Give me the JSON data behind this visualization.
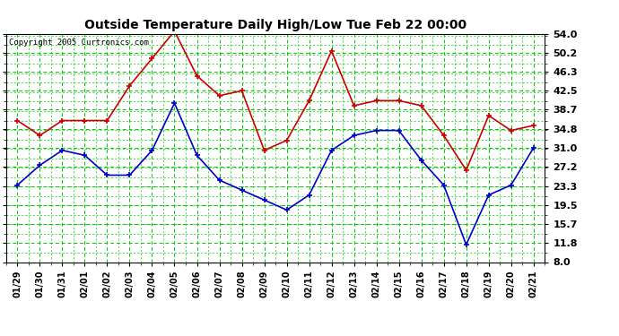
{
  "title": "Outside Temperature Daily High/Low Tue Feb 22 00:00",
  "copyright": "Copyright 2005 Curtronics.com",
  "x_labels": [
    "01/29",
    "01/30",
    "01/31",
    "02/01",
    "02/02",
    "02/03",
    "02/04",
    "02/05",
    "02/06",
    "02/07",
    "02/08",
    "02/09",
    "02/10",
    "02/11",
    "02/12",
    "02/13",
    "02/14",
    "02/15",
    "02/16",
    "02/17",
    "02/18",
    "02/19",
    "02/20",
    "02/21"
  ],
  "high_values": [
    36.5,
    33.5,
    36.5,
    36.5,
    36.5,
    43.5,
    49.0,
    54.5,
    45.5,
    41.5,
    42.5,
    30.5,
    32.5,
    40.5,
    50.5,
    39.5,
    40.5,
    40.5,
    39.5,
    33.5,
    26.5,
    37.5,
    34.5,
    35.5
  ],
  "low_values": [
    23.5,
    27.5,
    30.5,
    29.5,
    25.5,
    25.5,
    30.5,
    40.0,
    29.5,
    24.5,
    22.5,
    20.5,
    18.5,
    21.5,
    30.5,
    33.5,
    34.5,
    34.5,
    28.5,
    23.5,
    11.5,
    21.5,
    23.5,
    31.0
  ],
  "high_color": "#cc0000",
  "low_color": "#0000cc",
  "bg_color": "#ffffff",
  "plot_bg_color": "#ffffff",
  "grid_color": "#00cc00",
  "y_ticks": [
    8.0,
    11.8,
    15.7,
    19.5,
    23.3,
    27.2,
    31.0,
    34.8,
    38.7,
    42.5,
    46.3,
    50.2,
    54.0
  ],
  "y_min": 8.0,
  "y_max": 54.0,
  "marker": "+",
  "marker_size": 5,
  "linewidth": 1.2
}
